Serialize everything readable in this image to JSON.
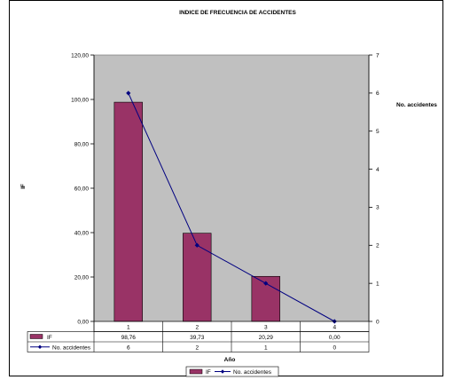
{
  "chart_data": {
    "type": "bar",
    "title": "INDICE DE FRECUENCIA  DE ACCIDENTES",
    "xlabel": "Año",
    "ylabel": "IF",
    "y2label": "No. accidentes",
    "categories": [
      "1",
      "2",
      "3",
      "4"
    ],
    "ylim": [
      0,
      120
    ],
    "y2lim": [
      0,
      7
    ],
    "yticks": [
      "0,00",
      "20,00",
      "40,00",
      "60,00",
      "80,00",
      "100,00",
      "120,00"
    ],
    "y2ticks": [
      "0",
      "1",
      "2",
      "3",
      "4",
      "5",
      "6",
      "7"
    ],
    "series": [
      {
        "name": "IF",
        "kind": "bar",
        "axis": "left",
        "values": [
          98.76,
          39.73,
          20.29,
          0.0
        ],
        "labels": [
          "98,76",
          "39,73",
          "20,29",
          "0,00"
        ],
        "color": "#993366"
      },
      {
        "name": "No. accidentes",
        "kind": "line",
        "axis": "right",
        "values": [
          6,
          2,
          1,
          0
        ],
        "labels": [
          "6",
          "2",
          "1",
          "0"
        ],
        "color": "#000080"
      }
    ],
    "plot_background": "#c0c0c0",
    "grid": false,
    "legend_position": "bottom",
    "data_table": true
  }
}
